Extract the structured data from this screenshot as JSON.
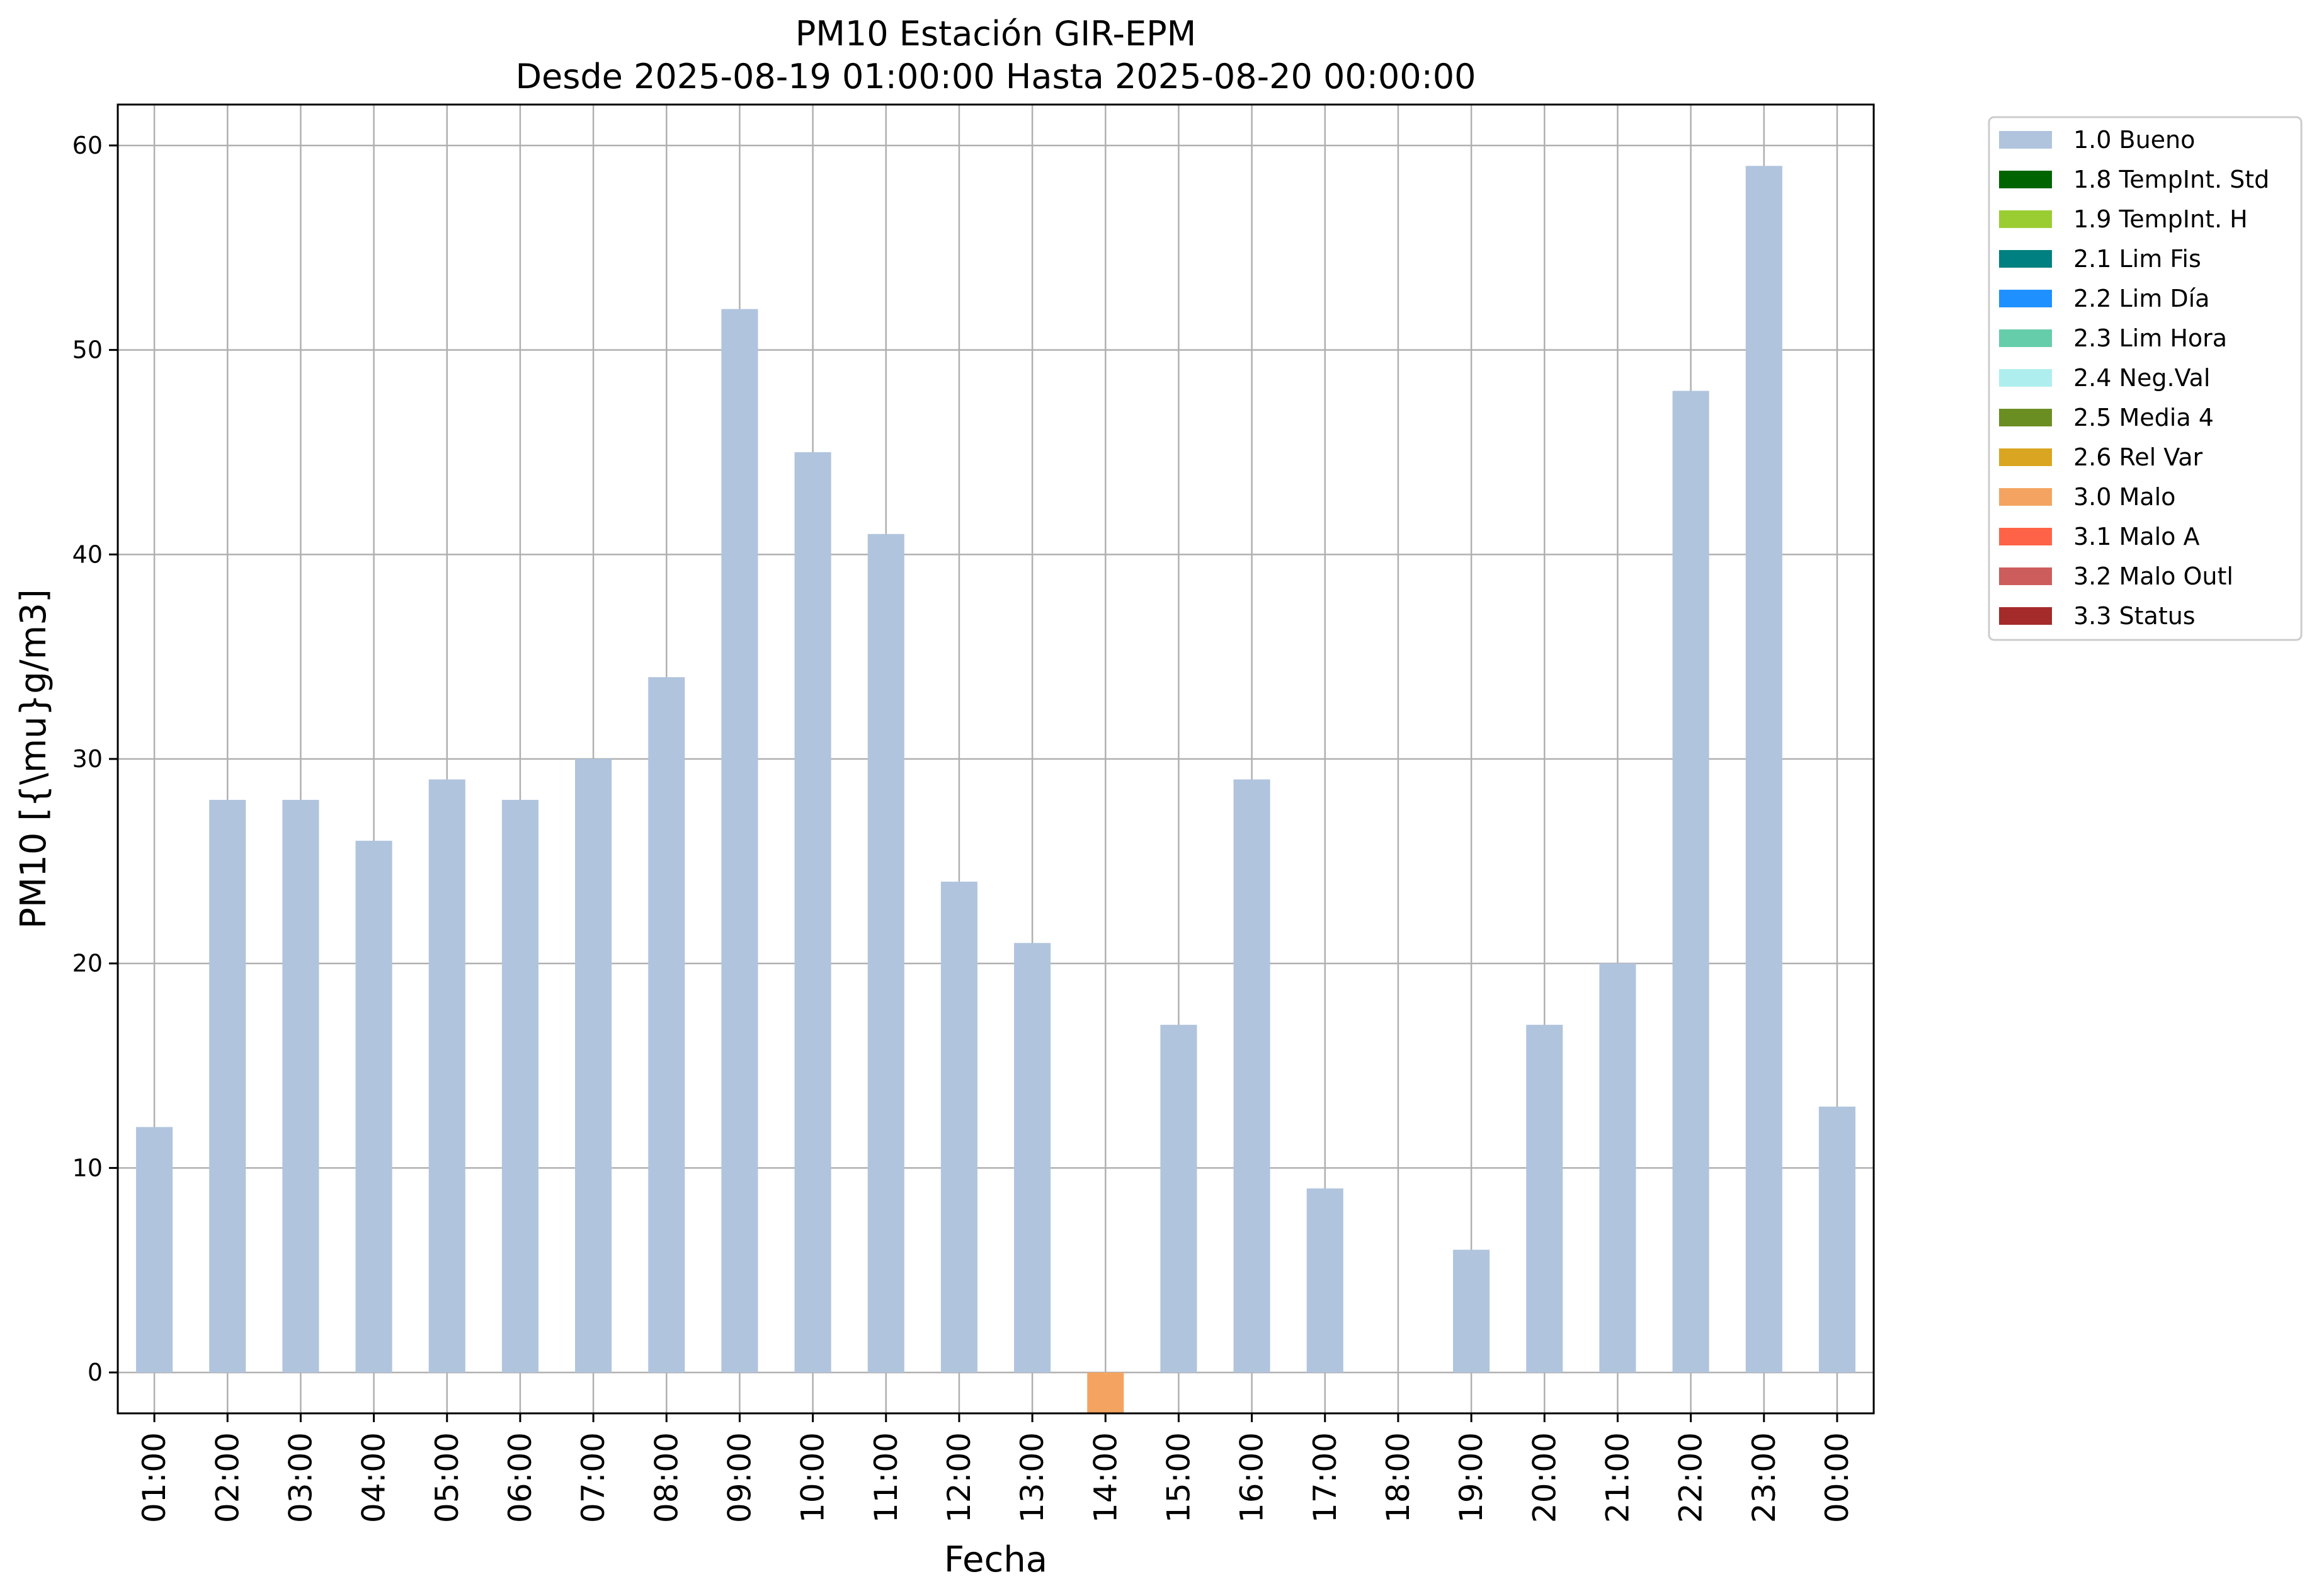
{
  "chart_data": {
    "type": "bar",
    "title_lines": [
      "PM10 Estación GIR-EPM",
      "Desde 2025-08-19 01:00:00 Hasta 2025-08-20 00:00:00"
    ],
    "xlabel": "Fecha",
    "ylabel": "PM10 [{\\mu}g/m3]",
    "categories": [
      "01:00",
      "02:00",
      "03:00",
      "04:00",
      "05:00",
      "06:00",
      "07:00",
      "08:00",
      "09:00",
      "10:00",
      "11:00",
      "12:00",
      "13:00",
      "14:00",
      "15:00",
      "16:00",
      "17:00",
      "18:00",
      "19:00",
      "20:00",
      "21:00",
      "22:00",
      "23:00",
      "00:00"
    ],
    "values": [
      12,
      28,
      28,
      26,
      29,
      28,
      30,
      34,
      52,
      45,
      41,
      24,
      21,
      -2,
      17,
      29,
      9,
      0,
      6,
      17,
      20,
      48,
      59,
      13
    ],
    "bar_status": [
      "1.0",
      "1.0",
      "1.0",
      "1.0",
      "1.0",
      "1.0",
      "1.0",
      "1.0",
      "1.0",
      "1.0",
      "1.0",
      "1.0",
      "1.0",
      "3.0",
      "1.0",
      "1.0",
      "1.0",
      "1.0",
      "1.0",
      "1.0",
      "1.0",
      "1.0",
      "1.0",
      "1.0"
    ],
    "ylim": [
      -2,
      62
    ],
    "yticks": [
      0,
      10,
      20,
      30,
      40,
      50,
      60
    ],
    "grid": true,
    "legend_position": "outside-top-right",
    "legend": [
      {
        "code": "1.0",
        "label": "1.0 Bueno",
        "color": "#b0c4de"
      },
      {
        "code": "1.8",
        "label": "1.8 TempInt. Std",
        "color": "#006400"
      },
      {
        "code": "1.9",
        "label": "1.9 TempInt. H",
        "color": "#9acd32"
      },
      {
        "code": "2.1",
        "label": "2.1 Lim Fis",
        "color": "#008080"
      },
      {
        "code": "2.2",
        "label": "2.2 Lim Día",
        "color": "#1e90ff"
      },
      {
        "code": "2.3",
        "label": "2.3 Lim Hora",
        "color": "#66cdaa"
      },
      {
        "code": "2.4",
        "label": "2.4 Neg.Val",
        "color": "#afeeee"
      },
      {
        "code": "2.5",
        "label": "2.5 Media 4",
        "color": "#6b8e23"
      },
      {
        "code": "2.6",
        "label": "2.6 Rel Var",
        "color": "#daa520"
      },
      {
        "code": "3.0",
        "label": "3.0 Malo",
        "color": "#f4a460"
      },
      {
        "code": "3.1",
        "label": "3.1 Malo A",
        "color": "#ff6347"
      },
      {
        "code": "3.2",
        "label": "3.2 Malo Outl",
        "color": "#cd5c5c"
      },
      {
        "code": "3.3",
        "label": "3.3 Status",
        "color": "#a52a2a"
      }
    ]
  }
}
